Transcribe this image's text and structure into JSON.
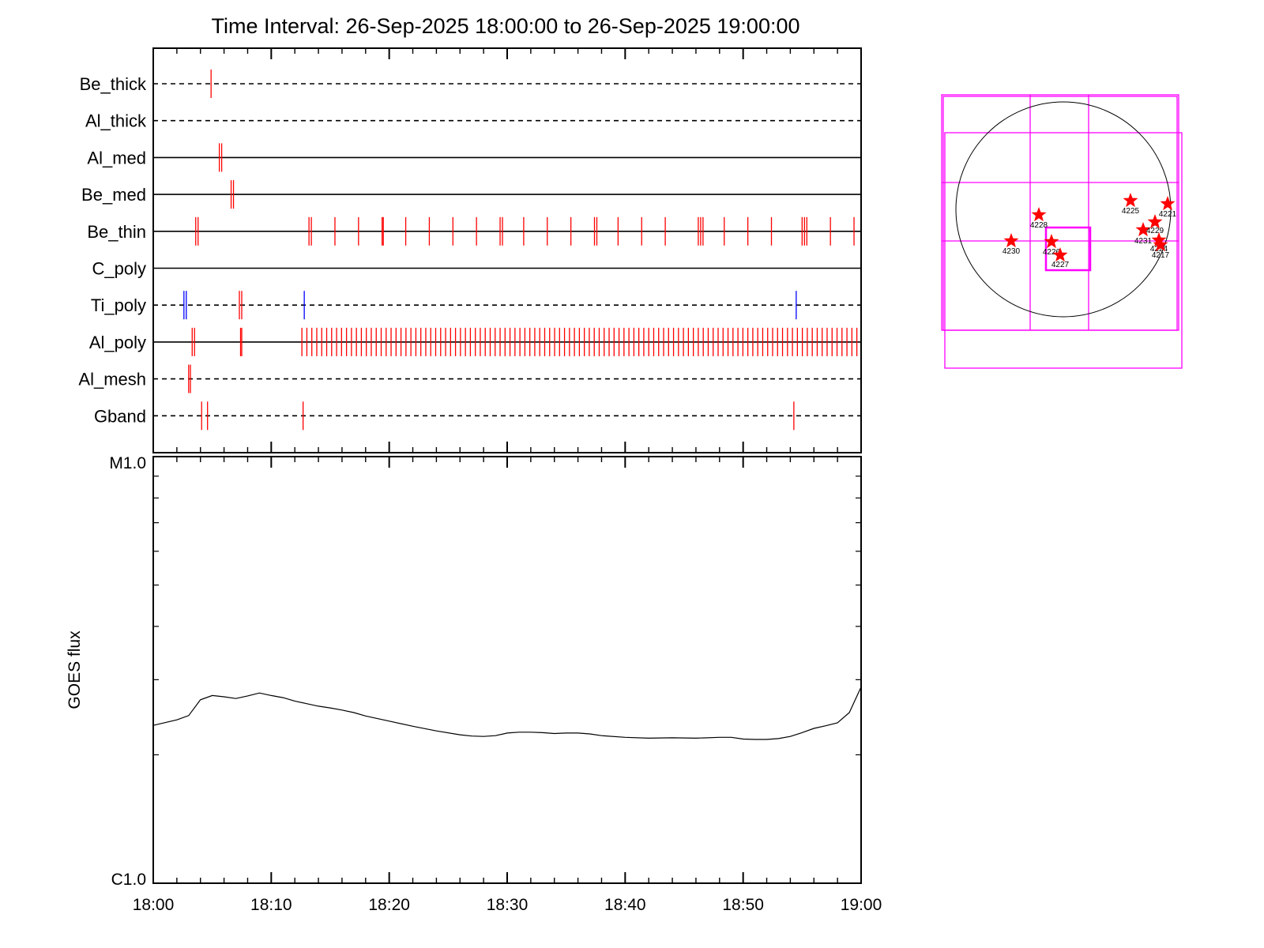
{
  "chart_data": [
    {
      "type": "event-timeline",
      "title": "Time Interval: 26-Sep-2025 18:00:00 to 26-Sep-2025 19:00:00",
      "xlim_minutes": [
        0,
        60
      ],
      "channels": [
        {
          "name": "Be_thick",
          "baseline": "dashed"
        },
        {
          "name": "Al_thick",
          "baseline": "dashed"
        },
        {
          "name": "Al_med",
          "baseline": "solid"
        },
        {
          "name": "Be_med",
          "baseline": "solid"
        },
        {
          "name": "Be_thin",
          "baseline": "solid"
        },
        {
          "name": "C_poly",
          "baseline": "solid"
        },
        {
          "name": "Ti_poly",
          "baseline": "dashed"
        },
        {
          "name": "Al_poly",
          "baseline": "solid"
        },
        {
          "name": "Al_mesh",
          "baseline": "dashed"
        },
        {
          "name": "Gband",
          "baseline": "dashed"
        }
      ],
      "events": {
        "Be_thick": {
          "red": [
            4.9
          ]
        },
        "Al_thick": {
          "red": []
        },
        "Al_med": {
          "red": [
            5.6,
            5.8
          ]
        },
        "Be_med": {
          "red": [
            6.6,
            6.8
          ]
        },
        "Be_thin": {
          "red": [
            3.6,
            3.8,
            13.2,
            13.4,
            15.4,
            17.4,
            19.4,
            19.5,
            21.4,
            23.4,
            25.4,
            27.4,
            29.4,
            29.6,
            31.4,
            33.4,
            35.4,
            37.4,
            37.6,
            39.4,
            41.4,
            43.4,
            46.2,
            46.4,
            46.6,
            48.4,
            50.4,
            52.4,
            55.0,
            55.2,
            55.4,
            57.4,
            59.4
          ]
        },
        "C_poly": {
          "red": []
        },
        "Ti_poly": {
          "red": [
            7.3,
            7.5
          ],
          "blue": [
            2.6,
            2.8,
            12.8,
            54.5
          ]
        },
        "Al_mesh": {
          "red": [
            3.0,
            3.15
          ]
        },
        "Gband": {
          "red": [
            4.1,
            4.6,
            12.7,
            54.3
          ]
        }
      },
      "al_poly": {
        "isolated_red": [
          3.3,
          3.5,
          7.4,
          7.5
        ],
        "dense_start": 12.6,
        "dense_end": 60.0,
        "dense_step": 0.42
      }
    },
    {
      "type": "line",
      "ylabel": "GOES flux",
      "ytick_labels": [
        "M1.0",
        "C1.0"
      ],
      "y_log_range": [
        -6,
        -5
      ],
      "xtick_labels": [
        "18:00",
        "18:10",
        "18:20",
        "18:30",
        "18:40",
        "18:50",
        "19:00"
      ],
      "xlim_minutes": [
        0,
        60
      ],
      "series": [
        {
          "x": [
            0,
            2,
            3,
            4,
            5,
            6,
            7,
            8,
            9,
            10,
            11,
            12,
            13,
            14,
            15,
            16,
            17,
            18,
            20,
            22,
            24,
            26,
            27,
            28,
            29,
            30,
            31,
            32,
            33,
            34,
            35,
            36,
            37,
            38,
            40,
            42,
            44,
            46,
            48,
            49,
            50,
            51,
            52,
            53,
            54,
            55,
            56,
            57,
            58,
            59,
            60
          ],
          "y": [
            -5.63,
            -5.617,
            -5.607,
            -5.57,
            -5.56,
            -5.563,
            -5.567,
            -5.561,
            -5.554,
            -5.56,
            -5.565,
            -5.573,
            -5.579,
            -5.585,
            -5.589,
            -5.594,
            -5.6,
            -5.608,
            -5.62,
            -5.632,
            -5.643,
            -5.652,
            -5.655,
            -5.656,
            -5.654,
            -5.648,
            -5.646,
            -5.646,
            -5.647,
            -5.649,
            -5.648,
            -5.648,
            -5.65,
            -5.654,
            -5.658,
            -5.66,
            -5.659,
            -5.66,
            -5.658,
            -5.658,
            -5.662,
            -5.663,
            -5.663,
            -5.661,
            -5.656,
            -5.647,
            -5.637,
            -5.631,
            -5.624,
            -5.6,
            -5.54
          ]
        }
      ]
    },
    {
      "type": "map",
      "region_labels": [
        "4230",
        "4228",
        "4226",
        "4227",
        "4225",
        "4221",
        "4231",
        "4229",
        "4224",
        "4217"
      ]
    }
  ]
}
